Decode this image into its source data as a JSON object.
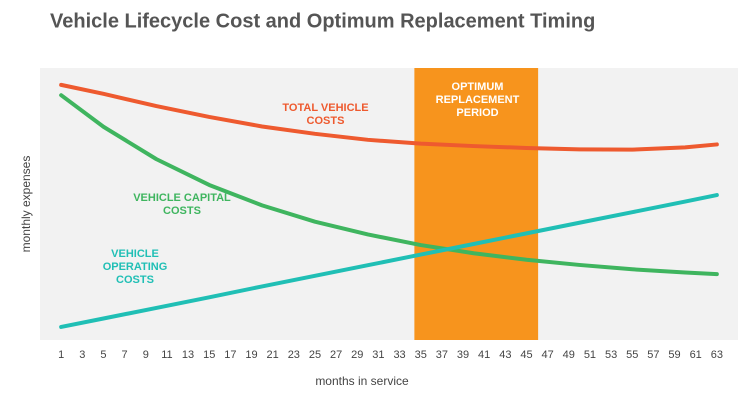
{
  "chart_data": {
    "type": "line",
    "title": "Vehicle Lifecycle Cost and Optimum Replacement Timing",
    "x_label": "months in service",
    "y_label": "monthly expenses",
    "x": [
      1,
      5,
      10,
      15,
      20,
      25,
      30,
      35,
      40,
      45,
      50,
      55,
      60,
      63
    ],
    "xlim": [
      -1,
      65
    ],
    "xticks": [
      1,
      3,
      5,
      7,
      9,
      11,
      13,
      15,
      17,
      19,
      21,
      23,
      25,
      27,
      29,
      31,
      33,
      35,
      37,
      39,
      41,
      43,
      45,
      47,
      49,
      51,
      53,
      55,
      57,
      59,
      61,
      63
    ],
    "ylim": [
      0,
      100
    ],
    "series": [
      {
        "name": "TOTAL VEHICLE COSTS",
        "color": "#ee5a2f",
        "values": [
          93.8,
          90.5,
          86,
          82,
          78.5,
          75.8,
          73.6,
          72.2,
          71.3,
          70.6,
          70.1,
          70.0,
          70.8,
          71.9
        ]
      },
      {
        "name": "VEHICLE CAPITAL COSTS",
        "color": "#3fb55f",
        "values": [
          90,
          78.4,
          66.5,
          57.0,
          49.5,
          43.5,
          38.8,
          34.9,
          31.9,
          29.5,
          27.6,
          26.0,
          24.8,
          24.2
        ]
      },
      {
        "name": "VEHICLE OPERATING COSTS",
        "color": "#20bfb5",
        "values": [
          4.8,
          7.9,
          11.8,
          15.7,
          19.7,
          23.6,
          27.5,
          31.4,
          35.3,
          39.2,
          43.1,
          47.0,
          50.9,
          53.3
        ]
      }
    ],
    "highlight": {
      "x": [
        34.4,
        46.1
      ],
      "label": "OPTIMUM REPLACEMENT PERIOD",
      "color": "#f7941d"
    },
    "background": "#f2f2f2"
  }
}
